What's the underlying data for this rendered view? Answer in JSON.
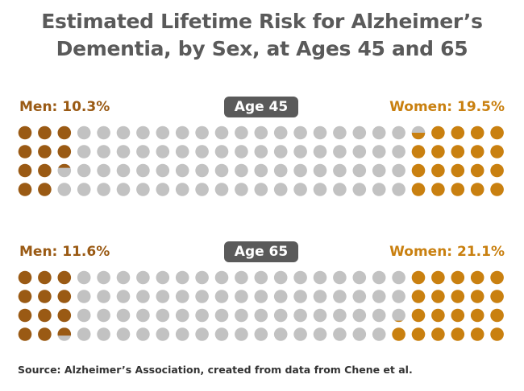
{
  "title_lines": [
    "Estimated Lifetime Risk for Alzheimer’s",
    "Dementia, by Sex, at Ages 45 and 65"
  ],
  "source": "Source: Alzheimer’s Association, created from data from Chene et al.",
  "colors": {
    "men": "#9a5a14",
    "women": "#c98010",
    "empty": "#c2c2c2",
    "pill": "#5a5a5a",
    "title": "#5a5a5a"
  },
  "chart_data": [
    {
      "type": "waffle",
      "age_label": "Age 45",
      "men_label": "Men: 10.3%",
      "women_label": "Women: 19.5%",
      "men_percent": 10.3,
      "women_percent": 19.5,
      "grid": {
        "rows": 4,
        "columns": 25
      }
    },
    {
      "type": "waffle",
      "age_label": "Age 65",
      "men_label": "Men: 11.6%",
      "women_label": "Women: 21.1%",
      "men_percent": 11.6,
      "women_percent": 21.1,
      "grid": {
        "rows": 4,
        "columns": 25
      }
    }
  ]
}
